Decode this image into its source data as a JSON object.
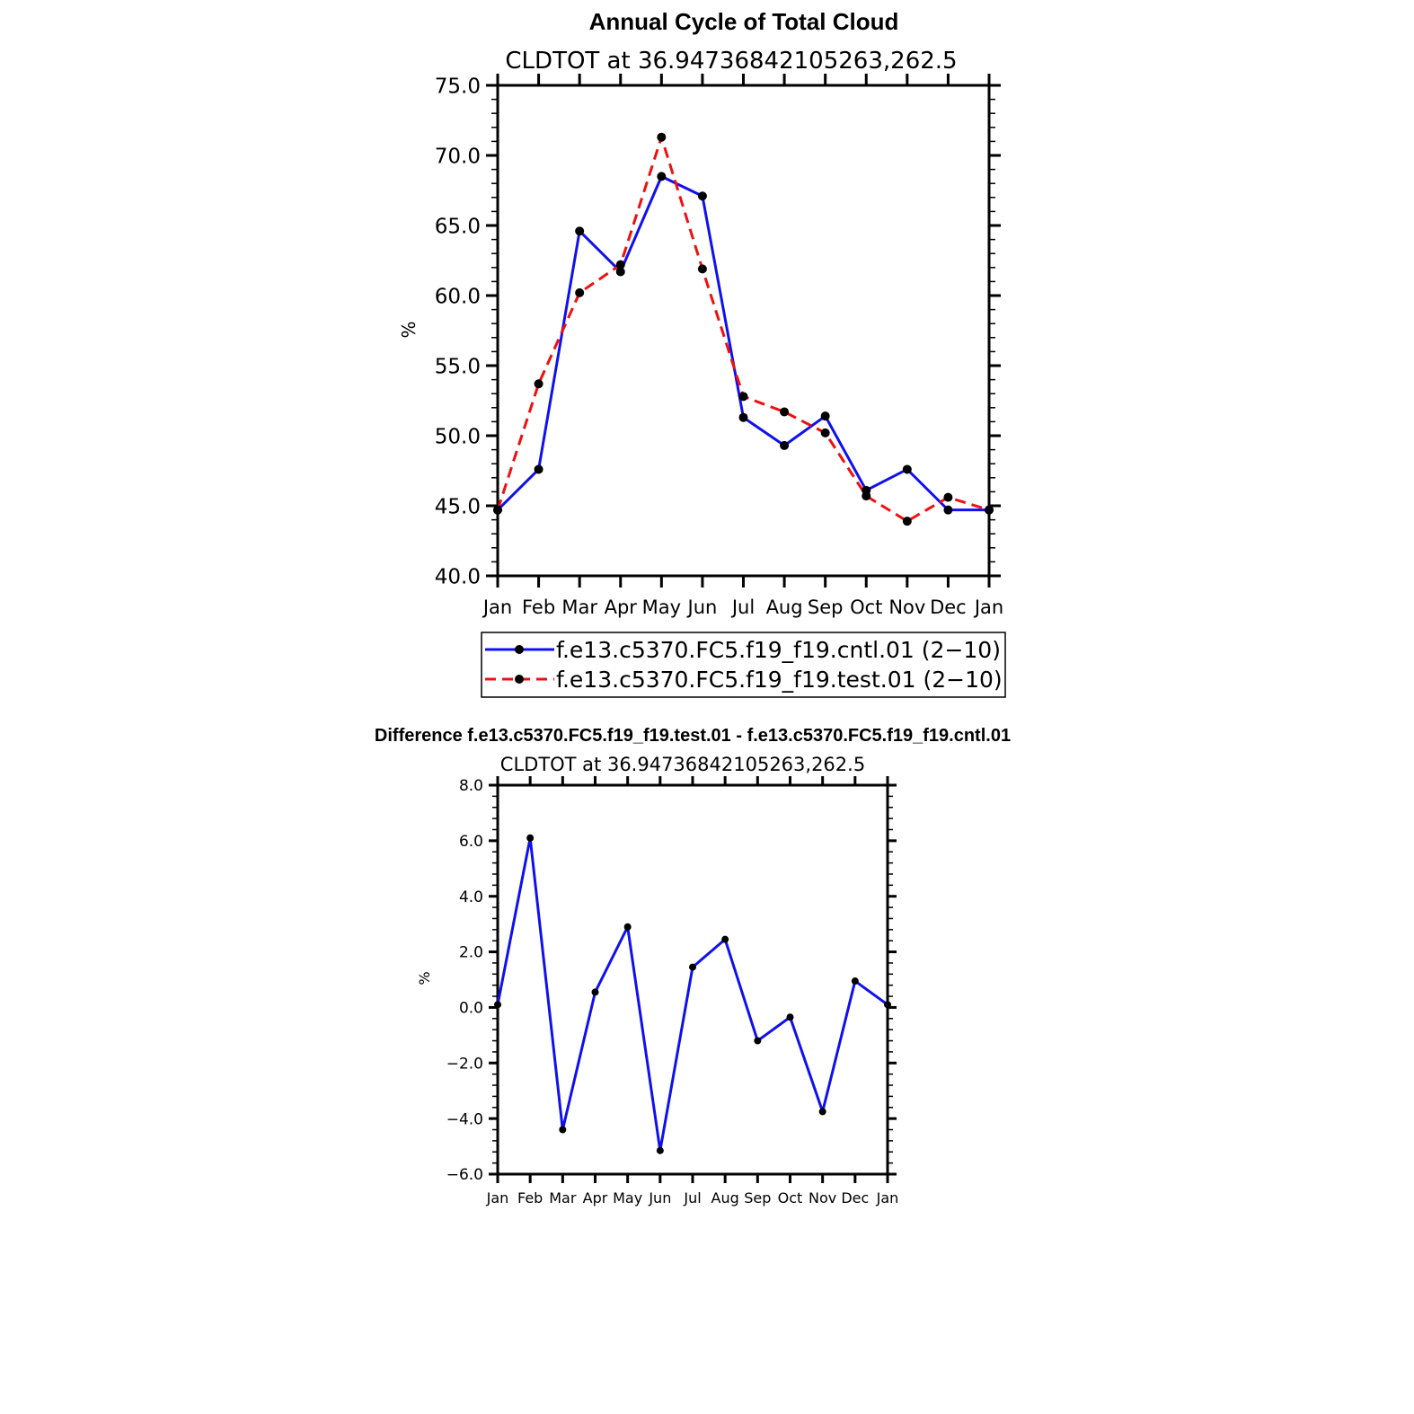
{
  "colors": {
    "cntl": "#1010ee",
    "test": "#ee1010",
    "marker": "#000000",
    "axis": "#000000"
  },
  "chart_data": [
    {
      "type": "line",
      "title": "Annual Cycle of Total Cloud",
      "subtitle": "CLDTOT at 36.94736842105263,262.5",
      "ylabel": "%",
      "categories": [
        "Jan",
        "Feb",
        "Mar",
        "Apr",
        "May",
        "Jun",
        "Jul",
        "Aug",
        "Sep",
        "Oct",
        "Nov",
        "Dec",
        "Jan"
      ],
      "ylim": [
        40.0,
        75.0
      ],
      "yticks": [
        "40.0",
        "45.0",
        "50.0",
        "55.0",
        "60.0",
        "65.0",
        "70.0",
        "75.0"
      ],
      "legend_position": "bottom",
      "series": [
        {
          "name": "f.e13.c5370.FC5.f19_f19.cntl.01 (2−10)",
          "style": "solid",
          "color": "#1010ee",
          "values": [
            44.7,
            47.6,
            64.6,
            61.7,
            68.5,
            67.1,
            51.3,
            49.3,
            51.4,
            46.1,
            47.6,
            44.7,
            44.7
          ]
        },
        {
          "name": "f.e13.c5370.FC5.f19_f19.test.01 (2−10)",
          "style": "dashed",
          "color": "#ee1010",
          "values": [
            44.7,
            53.7,
            60.2,
            62.2,
            71.3,
            61.9,
            52.8,
            51.7,
            50.2,
            45.7,
            43.9,
            45.6,
            44.7
          ]
        }
      ]
    },
    {
      "type": "line",
      "title": "Difference f.e13.c5370.FC5.f19_f19.test.01 - f.e13.c5370.FC5.f19_f19.cntl.01",
      "subtitle": "CLDTOT at 36.94736842105263,262.5",
      "ylabel": "%",
      "categories": [
        "Jan",
        "Feb",
        "Mar",
        "Apr",
        "May",
        "Jun",
        "Jul",
        "Aug",
        "Sep",
        "Oct",
        "Nov",
        "Dec",
        "Jan"
      ],
      "ylim": [
        -6.0,
        8.0
      ],
      "yticks": [
        "−6.0",
        "−4.0",
        "−2.0",
        "0.0",
        "2.0",
        "4.0",
        "6.0",
        "8.0"
      ],
      "series": [
        {
          "color": "#1010ee",
          "values": [
            0.1,
            6.1,
            -4.4,
            0.55,
            2.9,
            -5.15,
            1.45,
            2.45,
            -1.2,
            -0.35,
            -3.75,
            0.95,
            0.1
          ]
        }
      ]
    }
  ]
}
